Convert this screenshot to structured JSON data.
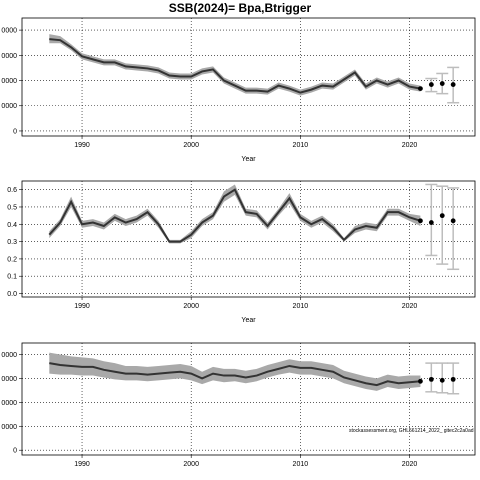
{
  "figure": {
    "title": "SSB(2024)= Bpa,Btrigger",
    "watermark": "stockassessment.org, GHL561214_2022_ gitec2c2a0ad",
    "colors": {
      "band": "#a9a9a9",
      "line": "#333333",
      "errorbar": "#bdbdbd",
      "grid": "#000000",
      "points": "#000000"
    }
  },
  "chart_data": [
    {
      "type": "line",
      "id": "panel-1",
      "xlabel": "Year",
      "ylabel": "",
      "xlim": [
        1984.5,
        2026
      ],
      "ylim": [
        -5,
        112
      ],
      "xticks": [
        1990,
        2000,
        2010,
        2020
      ],
      "yticks": [
        0,
        25,
        50,
        75,
        100
      ],
      "ytick_labels": [
        "0",
        "0000",
        "0000",
        "0000",
        "0000"
      ],
      "grid": true,
      "series": [
        {
          "x": [
            1987,
            1988,
            1989,
            1990,
            1991,
            1992,
            1993,
            1994,
            1995,
            1996,
            1997,
            1998,
            1999,
            2000,
            2001,
            2002,
            2003,
            2004,
            2005,
            2006,
            2007,
            2008,
            2009,
            2010,
            2011,
            2012,
            2013,
            2014,
            2015,
            2016,
            2017,
            2018,
            2019,
            2020,
            2021
          ],
          "y": [
            91,
            90,
            83,
            74,
            71,
            68,
            68,
            64,
            63,
            62,
            60,
            55,
            54,
            54,
            59,
            61,
            50,
            45,
            40,
            40,
            39,
            45,
            42,
            38,
            41,
            45,
            44,
            51,
            58,
            44,
            50,
            46,
            50,
            44,
            42
          ],
          "lower": [
            87,
            87,
            80,
            71,
            68,
            65,
            65,
            61,
            60,
            59,
            57,
            52,
            51,
            51,
            56,
            58,
            47,
            42,
            37,
            37,
            36,
            42,
            39,
            35,
            38,
            42,
            41,
            48,
            55,
            41,
            47,
            43,
            47,
            41,
            39
          ],
          "upper": [
            96,
            94,
            86,
            77,
            74,
            71,
            71,
            67,
            66,
            65,
            63,
            58,
            57,
            57,
            62,
            64,
            53,
            48,
            43,
            43,
            42,
            48,
            45,
            41,
            44,
            48,
            47,
            54,
            61,
            47,
            53,
            49,
            53,
            47,
            45
          ]
        }
      ],
      "forecast": {
        "x": [
          2021,
          2022,
          2023,
          2024
        ],
        "y": [
          42,
          46,
          47,
          46
        ],
        "lower": [
          42,
          39,
          37,
          28
        ],
        "upper": [
          42,
          52,
          57,
          63
        ]
      }
    },
    {
      "type": "line",
      "id": "panel-2",
      "xlabel": "Year",
      "ylabel": "",
      "xlim": [
        1984.5,
        2026
      ],
      "ylim": [
        -0.02,
        0.65
      ],
      "xticks": [
        1990,
        2000,
        2010,
        2020
      ],
      "yticks": [
        0.0,
        0.1,
        0.2,
        0.3,
        0.4,
        0.5,
        0.6
      ],
      "ytick_labels": [
        "0.0",
        "0.1",
        "0.2",
        "0.3",
        "0.4",
        "0.5",
        "0.6"
      ],
      "grid": true,
      "series": [
        {
          "x": [
            1987,
            1988,
            1989,
            1990,
            1991,
            1992,
            1993,
            1994,
            1995,
            1996,
            1997,
            1998,
            1999,
            2000,
            2001,
            2002,
            2003,
            2004,
            2005,
            2006,
            2007,
            2008,
            2009,
            2010,
            2011,
            2012,
            2013,
            2014,
            2015,
            2016,
            2017,
            2018,
            2019,
            2020,
            2021
          ],
          "y": [
            0.34,
            0.41,
            0.53,
            0.4,
            0.41,
            0.39,
            0.44,
            0.41,
            0.43,
            0.47,
            0.4,
            0.3,
            0.3,
            0.34,
            0.41,
            0.45,
            0.56,
            0.6,
            0.47,
            0.46,
            0.39,
            0.47,
            0.55,
            0.44,
            0.4,
            0.43,
            0.38,
            0.31,
            0.37,
            0.39,
            0.38,
            0.47,
            0.47,
            0.44,
            0.42
          ],
          "lower": [
            0.32,
            0.39,
            0.5,
            0.38,
            0.39,
            0.37,
            0.42,
            0.39,
            0.41,
            0.45,
            0.38,
            0.29,
            0.29,
            0.32,
            0.39,
            0.43,
            0.53,
            0.57,
            0.45,
            0.44,
            0.37,
            0.45,
            0.52,
            0.42,
            0.38,
            0.41,
            0.36,
            0.3,
            0.35,
            0.37,
            0.36,
            0.45,
            0.45,
            0.42,
            0.39
          ],
          "upper": [
            0.36,
            0.43,
            0.56,
            0.42,
            0.43,
            0.41,
            0.46,
            0.43,
            0.45,
            0.49,
            0.42,
            0.31,
            0.31,
            0.36,
            0.43,
            0.47,
            0.59,
            0.63,
            0.49,
            0.48,
            0.41,
            0.49,
            0.58,
            0.46,
            0.42,
            0.45,
            0.4,
            0.32,
            0.39,
            0.41,
            0.4,
            0.49,
            0.49,
            0.46,
            0.45
          ]
        }
      ],
      "forecast": {
        "x": [
          2021,
          2022,
          2023,
          2024
        ],
        "y": [
          0.42,
          0.41,
          0.45,
          0.42
        ],
        "lower": [
          0.42,
          0.22,
          0.17,
          0.14
        ],
        "upper": [
          0.42,
          0.63,
          0.62,
          0.61
        ]
      }
    },
    {
      "type": "line",
      "id": "panel-3",
      "xlabel": "",
      "ylabel": "",
      "xlim": [
        1984.5,
        2026
      ],
      "ylim": [
        -5,
        112
      ],
      "xticks": [
        1990,
        2000,
        2010,
        2020
      ],
      "yticks": [
        0,
        25,
        50,
        75,
        100
      ],
      "ytick_labels": [
        "0",
        "0000",
        "0000",
        "0000",
        "0000"
      ],
      "grid": true,
      "series": [
        {
          "x": [
            1987,
            1988,
            1989,
            1990,
            1991,
            1992,
            1993,
            1994,
            1995,
            1996,
            1997,
            1998,
            1999,
            2000,
            2001,
            2002,
            2003,
            2004,
            2005,
            2006,
            2007,
            2008,
            2009,
            2010,
            2011,
            2012,
            2013,
            2014,
            2015,
            2016,
            2017,
            2018,
            2019,
            2020,
            2021
          ],
          "y": [
            91,
            89,
            88,
            87,
            87,
            84,
            82,
            80,
            80,
            79,
            80,
            81,
            82,
            80,
            75,
            80,
            78,
            78,
            76,
            78,
            82,
            85,
            88,
            86,
            86,
            84,
            82,
            76,
            73,
            70,
            68,
            72,
            70,
            71,
            72
          ],
          "lower": [
            80,
            79,
            79,
            78,
            78,
            76,
            74,
            73,
            73,
            72,
            73,
            74,
            75,
            73,
            69,
            73,
            71,
            72,
            70,
            72,
            76,
            79,
            81,
            79,
            79,
            77,
            75,
            70,
            67,
            64,
            62,
            66,
            64,
            65,
            66
          ],
          "upper": [
            102,
            100,
            98,
            97,
            96,
            93,
            91,
            88,
            88,
            87,
            88,
            89,
            90,
            88,
            82,
            87,
            85,
            85,
            83,
            85,
            89,
            92,
            95,
            93,
            93,
            91,
            89,
            83,
            80,
            77,
            75,
            79,
            77,
            78,
            78
          ]
        }
      ],
      "forecast": {
        "x": [
          2021,
          2022,
          2023,
          2024
        ],
        "y": [
          72,
          74,
          73,
          74
        ],
        "lower": [
          72,
          61,
          60,
          59
        ],
        "upper": [
          72,
          91,
          91,
          91
        ]
      }
    }
  ]
}
